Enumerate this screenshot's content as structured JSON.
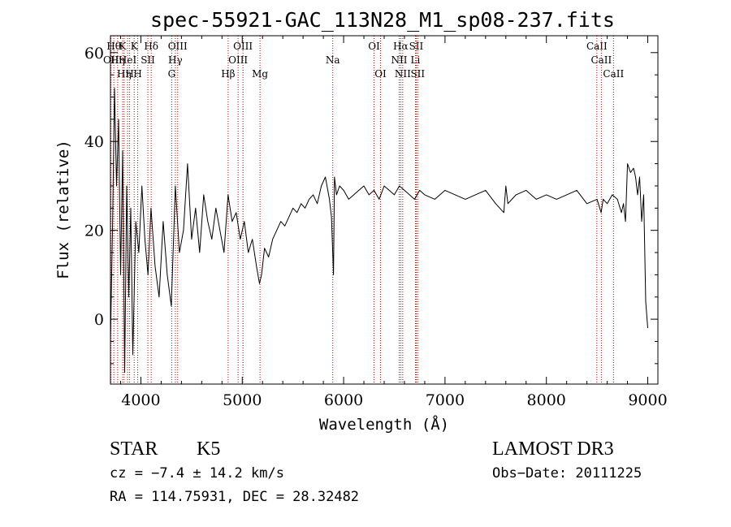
{
  "chart_data": {
    "type": "line",
    "title": "spec-55921-GAC_113N28_M1_sp08-237.fits",
    "xlabel": "Wavelength (Å)",
    "ylabel": "Flux (relative)",
    "xlim": [
      3700,
      9100
    ],
    "ylim": [
      -14.6,
      63.8
    ],
    "xticks": [
      4000,
      5000,
      6000,
      7000,
      8000,
      9000
    ],
    "yticks": [
      0,
      20,
      40,
      60
    ],
    "series": [
      {
        "name": "flux",
        "x": [
          3700,
          3720,
          3740,
          3760,
          3780,
          3800,
          3820,
          3840,
          3860,
          3880,
          3900,
          3920,
          3950,
          3980,
          4010,
          4040,
          4070,
          4100,
          4140,
          4180,
          4220,
          4260,
          4300,
          4340,
          4380,
          4420,
          4460,
          4500,
          4540,
          4580,
          4620,
          4660,
          4700,
          4740,
          4780,
          4820,
          4860,
          4900,
          4940,
          4980,
          5020,
          5060,
          5100,
          5140,
          5170,
          5190,
          5220,
          5260,
          5300,
          5340,
          5380,
          5420,
          5460,
          5500,
          5540,
          5580,
          5620,
          5660,
          5700,
          5740,
          5780,
          5820,
          5860,
          5880,
          5900,
          5910,
          5930,
          5960,
          6000,
          6050,
          6100,
          6150,
          6200,
          6250,
          6300,
          6350,
          6400,
          6450,
          6500,
          6550,
          6600,
          6650,
          6700,
          6750,
          6800,
          6900,
          7000,
          7100,
          7200,
          7300,
          7400,
          7500,
          7580,
          7600,
          7620,
          7700,
          7800,
          7900,
          8000,
          8100,
          8200,
          8300,
          8400,
          8500,
          8540,
          8560,
          8600,
          8650,
          8700,
          8740,
          8760,
          8780,
          8800,
          8830,
          8860,
          8880,
          8900,
          8920,
          8940,
          8960,
          8980,
          9000
        ],
        "y": [
          -5,
          20,
          52,
          30,
          45,
          10,
          38,
          -12,
          30,
          5,
          25,
          -8,
          22,
          15,
          30,
          18,
          10,
          25,
          12,
          5,
          22,
          10,
          3,
          30,
          15,
          20,
          35,
          18,
          25,
          15,
          28,
          22,
          18,
          25,
          20,
          15,
          28,
          22,
          24,
          18,
          22,
          15,
          18,
          12,
          8,
          10,
          16,
          14,
          18,
          20,
          22,
          21,
          23,
          25,
          24,
          26,
          25,
          27,
          28,
          26,
          30,
          32,
          27,
          23,
          10,
          32,
          28,
          30,
          29,
          27,
          28,
          29,
          30,
          28,
          29,
          27,
          30,
          29,
          28,
          30,
          29,
          28,
          27,
          29,
          28,
          27,
          29,
          28,
          27,
          28,
          29,
          26,
          24,
          30,
          26,
          28,
          29,
          27,
          28,
          27,
          28,
          29,
          26,
          27,
          24,
          27,
          26,
          28,
          27,
          24,
          26,
          22,
          35,
          33,
          34,
          32,
          28,
          32,
          22,
          28,
          4,
          -2
        ]
      }
    ],
    "line_markers": [
      {
        "x": 3705,
        "row": 1,
        "label": "OII"
      },
      {
        "x": 3733,
        "row": 0,
        "label": "Hθ"
      },
      {
        "x": 3771,
        "row": 1,
        "label": "Hη"
      },
      {
        "x": 3820,
        "row": 0,
        "label": "K"
      },
      {
        "x": 3835,
        "row": 2,
        "label": "Hη"
      },
      {
        "x": 3869,
        "row": 1,
        "label": "HeI"
      },
      {
        "x": 3889,
        "row": 2,
        "label": "H"
      },
      {
        "x": 3934,
        "row": 0,
        "label": "K"
      },
      {
        "x": 3969,
        "row": 2,
        "label": "H"
      },
      {
        "x": 4069,
        "row": 1,
        "label": "SII"
      },
      {
        "x": 4102,
        "row": 0,
        "label": "Hδ"
      },
      {
        "x": 4304,
        "row": 2,
        "label": "G"
      },
      {
        "x": 4340,
        "row": 1,
        "label": "Hγ"
      },
      {
        "x": 4363,
        "row": 0,
        "label": "OIII"
      },
      {
        "x": 4861,
        "row": 2,
        "label": "Hβ"
      },
      {
        "x": 4959,
        "row": 1,
        "label": "OIII"
      },
      {
        "x": 5007,
        "row": 0,
        "label": "OIII"
      },
      {
        "x": 5175,
        "row": 2,
        "label": "Mg"
      },
      {
        "x": 5893,
        "row": 1,
        "label": "Na"
      },
      {
        "x": 6300,
        "row": 0,
        "label": "OI"
      },
      {
        "x": 6364,
        "row": 2,
        "label": "OI"
      },
      {
        "x": 6548,
        "row": 1,
        "label": "NII"
      },
      {
        "x": 6563,
        "row": 0,
        "label": "Hα"
      },
      {
        "x": 6583,
        "row": 2,
        "label": "NII"
      },
      {
        "x": 6708,
        "row": 1,
        "label": "Li"
      },
      {
        "x": 6716,
        "row": 0,
        "label": "SII"
      },
      {
        "x": 6731,
        "row": 2,
        "label": "SII"
      },
      {
        "x": 8498,
        "row": 0,
        "label": "CaII"
      },
      {
        "x": 8542,
        "row": 1,
        "label": "CaII"
      },
      {
        "x": 8662,
        "row": 2,
        "label": "CaII"
      }
    ]
  },
  "info": {
    "class": "STAR",
    "subclass": "K5",
    "survey": "LAMOST DR3",
    "cz": "cz = −7.4 ± 14.2 km/s",
    "obs_date": "Obs−Date: 20111225",
    "radec": "RA = 114.75931, DEC =  28.32482"
  }
}
